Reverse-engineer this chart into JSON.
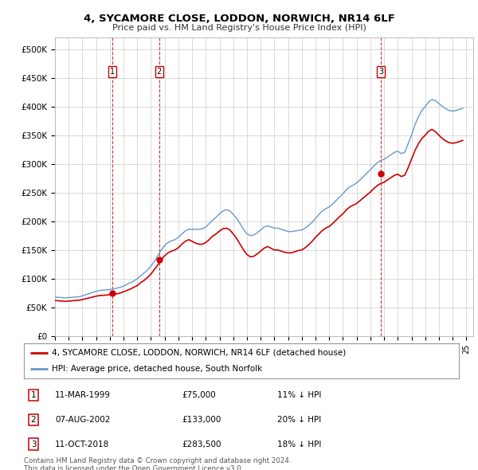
{
  "title": "4, SYCAMORE CLOSE, LODDON, NORWICH, NR14 6LF",
  "subtitle": "Price paid vs. HM Land Registry's House Price Index (HPI)",
  "ylabel_ticks": [
    "£0",
    "£50K",
    "£100K",
    "£150K",
    "£200K",
    "£250K",
    "£300K",
    "£350K",
    "£400K",
    "£450K",
    "£500K"
  ],
  "ytick_values": [
    0,
    50000,
    100000,
    150000,
    200000,
    250000,
    300000,
    350000,
    400000,
    450000,
    500000
  ],
  "ylim": [
    0,
    520000
  ],
  "xlim_start": 1995.0,
  "xlim_end": 2025.5,
  "background_color": "#ffffff",
  "grid_color": "#cccccc",
  "hpi_color": "#6699cc",
  "price_color": "#cc0000",
  "transactions": [
    {
      "label": "1",
      "date_num": 1999.19,
      "price": 75000,
      "pct": "11%",
      "date_str": "11-MAR-1999"
    },
    {
      "label": "2",
      "date_num": 2002.59,
      "price": 133000,
      "pct": "20%",
      "date_str": "07-AUG-2002"
    },
    {
      "label": "3",
      "date_num": 2018.78,
      "price": 283500,
      "pct": "18%",
      "date_str": "11-OCT-2018"
    }
  ],
  "legend_property": "4, SYCAMORE CLOSE, LODDON, NORWICH, NR14 6LF (detached house)",
  "legend_hpi": "HPI: Average price, detached house, South Norfolk",
  "footer1": "Contains HM Land Registry data © Crown copyright and database right 2024.",
  "footer2": "This data is licensed under the Open Government Licence v3.0.",
  "hpi_data": [
    [
      1995.0,
      68000
    ],
    [
      1995.25,
      67500
    ],
    [
      1995.5,
      67000
    ],
    [
      1995.75,
      66500
    ],
    [
      1996.0,
      67000
    ],
    [
      1996.25,
      67500
    ],
    [
      1996.5,
      68000
    ],
    [
      1996.75,
      68500
    ],
    [
      1997.0,
      70000
    ],
    [
      1997.25,
      72000
    ],
    [
      1997.5,
      74000
    ],
    [
      1997.75,
      76000
    ],
    [
      1998.0,
      78000
    ],
    [
      1998.25,
      79500
    ],
    [
      1998.5,
      80000
    ],
    [
      1998.75,
      80500
    ],
    [
      1999.0,
      81000
    ],
    [
      1999.25,
      82000
    ],
    [
      1999.5,
      83500
    ],
    [
      1999.75,
      85000
    ],
    [
      2000.0,
      87000
    ],
    [
      2000.25,
      90000
    ],
    [
      2000.5,
      93000
    ],
    [
      2000.75,
      96000
    ],
    [
      2001.0,
      100000
    ],
    [
      2001.25,
      105000
    ],
    [
      2001.5,
      110000
    ],
    [
      2001.75,
      115000
    ],
    [
      2002.0,
      122000
    ],
    [
      2002.25,
      130000
    ],
    [
      2002.5,
      140000
    ],
    [
      2002.75,
      150000
    ],
    [
      2003.0,
      158000
    ],
    [
      2003.25,
      163000
    ],
    [
      2003.5,
      166000
    ],
    [
      2003.75,
      168000
    ],
    [
      2004.0,
      172000
    ],
    [
      2004.25,
      178000
    ],
    [
      2004.5,
      183000
    ],
    [
      2004.75,
      186000
    ],
    [
      2005.0,
      186000
    ],
    [
      2005.25,
      186000
    ],
    [
      2005.5,
      186000
    ],
    [
      2005.75,
      187000
    ],
    [
      2006.0,
      190000
    ],
    [
      2006.25,
      196000
    ],
    [
      2006.5,
      202000
    ],
    [
      2006.75,
      207000
    ],
    [
      2007.0,
      213000
    ],
    [
      2007.25,
      218000
    ],
    [
      2007.5,
      220000
    ],
    [
      2007.75,
      218000
    ],
    [
      2008.0,
      212000
    ],
    [
      2008.25,
      205000
    ],
    [
      2008.5,
      196000
    ],
    [
      2008.75,
      186000
    ],
    [
      2009.0,
      178000
    ],
    [
      2009.25,
      175000
    ],
    [
      2009.5,
      176000
    ],
    [
      2009.75,
      180000
    ],
    [
      2010.0,
      185000
    ],
    [
      2010.25,
      190000
    ],
    [
      2010.5,
      192000
    ],
    [
      2010.75,
      190000
    ],
    [
      2011.0,
      188000
    ],
    [
      2011.25,
      188000
    ],
    [
      2011.5,
      186000
    ],
    [
      2011.75,
      184000
    ],
    [
      2012.0,
      182000
    ],
    [
      2012.25,
      182000
    ],
    [
      2012.5,
      183000
    ],
    [
      2012.75,
      184000
    ],
    [
      2013.0,
      185000
    ],
    [
      2013.25,
      188000
    ],
    [
      2013.5,
      193000
    ],
    [
      2013.75,
      198000
    ],
    [
      2014.0,
      205000
    ],
    [
      2014.25,
      212000
    ],
    [
      2014.5,
      218000
    ],
    [
      2014.75,
      222000
    ],
    [
      2015.0,
      225000
    ],
    [
      2015.25,
      230000
    ],
    [
      2015.5,
      236000
    ],
    [
      2015.75,
      242000
    ],
    [
      2016.0,
      248000
    ],
    [
      2016.25,
      255000
    ],
    [
      2016.5,
      260000
    ],
    [
      2016.75,
      263000
    ],
    [
      2017.0,
      267000
    ],
    [
      2017.25,
      272000
    ],
    [
      2017.5,
      278000
    ],
    [
      2017.75,
      284000
    ],
    [
      2018.0,
      290000
    ],
    [
      2018.25,
      296000
    ],
    [
      2018.5,
      302000
    ],
    [
      2018.75,
      306000
    ],
    [
      2019.0,
      308000
    ],
    [
      2019.25,
      312000
    ],
    [
      2019.5,
      316000
    ],
    [
      2019.75,
      320000
    ],
    [
      2020.0,
      322000
    ],
    [
      2020.25,
      318000
    ],
    [
      2020.5,
      320000
    ],
    [
      2020.75,
      335000
    ],
    [
      2021.0,
      350000
    ],
    [
      2021.25,
      368000
    ],
    [
      2021.5,
      382000
    ],
    [
      2021.75,
      393000
    ],
    [
      2022.0,
      400000
    ],
    [
      2022.25,
      408000
    ],
    [
      2022.5,
      412000
    ],
    [
      2022.75,
      410000
    ],
    [
      2023.0,
      405000
    ],
    [
      2023.25,
      400000
    ],
    [
      2023.5,
      396000
    ],
    [
      2023.75,
      393000
    ],
    [
      2024.0,
      392000
    ],
    [
      2024.25,
      393000
    ],
    [
      2024.5,
      395000
    ],
    [
      2024.75,
      397000
    ]
  ],
  "price_data": [
    [
      1995.0,
      62000
    ],
    [
      1995.25,
      61500
    ],
    [
      1995.5,
      61000
    ],
    [
      1995.75,
      60500
    ],
    [
      1996.0,
      61000
    ],
    [
      1996.25,
      61500
    ],
    [
      1996.5,
      62000
    ],
    [
      1996.75,
      62500
    ],
    [
      1997.0,
      63500
    ],
    [
      1997.25,
      65000
    ],
    [
      1997.5,
      66500
    ],
    [
      1997.75,
      68000
    ],
    [
      1998.0,
      69500
    ],
    [
      1998.25,
      70500
    ],
    [
      1998.5,
      71000
    ],
    [
      1998.75,
      71500
    ],
    [
      1999.0,
      72000
    ],
    [
      1999.25,
      72500
    ],
    [
      1999.5,
      73500
    ],
    [
      1999.75,
      75000
    ],
    [
      2000.0,
      77000
    ],
    [
      2000.25,
      79500
    ],
    [
      2000.5,
      82000
    ],
    [
      2000.75,
      85000
    ],
    [
      2001.0,
      88000
    ],
    [
      2001.25,
      93000
    ],
    [
      2001.5,
      97000
    ],
    [
      2001.75,
      102000
    ],
    [
      2002.0,
      108000
    ],
    [
      2002.25,
      116000
    ],
    [
      2002.5,
      124000
    ],
    [
      2002.75,
      133000
    ],
    [
      2003.0,
      140000
    ],
    [
      2003.25,
      145000
    ],
    [
      2003.5,
      148000
    ],
    [
      2003.75,
      150000
    ],
    [
      2004.0,
      154000
    ],
    [
      2004.25,
      160000
    ],
    [
      2004.5,
      165000
    ],
    [
      2004.75,
      168000
    ],
    [
      2005.0,
      165000
    ],
    [
      2005.25,
      162000
    ],
    [
      2005.5,
      160000
    ],
    [
      2005.75,
      160000
    ],
    [
      2006.0,
      163000
    ],
    [
      2006.25,
      168000
    ],
    [
      2006.5,
      174000
    ],
    [
      2006.75,
      178000
    ],
    [
      2007.0,
      183000
    ],
    [
      2007.25,
      187000
    ],
    [
      2007.5,
      188000
    ],
    [
      2007.75,
      185000
    ],
    [
      2008.0,
      178000
    ],
    [
      2008.25,
      170000
    ],
    [
      2008.5,
      160000
    ],
    [
      2008.75,
      150000
    ],
    [
      2009.0,
      142000
    ],
    [
      2009.25,
      138000
    ],
    [
      2009.5,
      139000
    ],
    [
      2009.75,
      143000
    ],
    [
      2010.0,
      148000
    ],
    [
      2010.25,
      153000
    ],
    [
      2010.5,
      156000
    ],
    [
      2010.75,
      153000
    ],
    [
      2011.0,
      150000
    ],
    [
      2011.25,
      150000
    ],
    [
      2011.5,
      148000
    ],
    [
      2011.75,
      146000
    ],
    [
      2012.0,
      145000
    ],
    [
      2012.25,
      145000
    ],
    [
      2012.5,
      147000
    ],
    [
      2012.75,
      149000
    ],
    [
      2013.0,
      150000
    ],
    [
      2013.25,
      154000
    ],
    [
      2013.5,
      159000
    ],
    [
      2013.75,
      165000
    ],
    [
      2014.0,
      172000
    ],
    [
      2014.25,
      178000
    ],
    [
      2014.5,
      184000
    ],
    [
      2014.75,
      188000
    ],
    [
      2015.0,
      191000
    ],
    [
      2015.25,
      196000
    ],
    [
      2015.5,
      202000
    ],
    [
      2015.75,
      208000
    ],
    [
      2016.0,
      213000
    ],
    [
      2016.25,
      220000
    ],
    [
      2016.5,
      225000
    ],
    [
      2016.75,
      228000
    ],
    [
      2017.0,
      231000
    ],
    [
      2017.25,
      236000
    ],
    [
      2017.5,
      241000
    ],
    [
      2017.75,
      246000
    ],
    [
      2018.0,
      251000
    ],
    [
      2018.25,
      257000
    ],
    [
      2018.5,
      262000
    ],
    [
      2018.75,
      266000
    ],
    [
      2019.0,
      268000
    ],
    [
      2019.25,
      272000
    ],
    [
      2019.5,
      276000
    ],
    [
      2019.75,
      280000
    ],
    [
      2020.0,
      282000
    ],
    [
      2020.25,
      278000
    ],
    [
      2020.5,
      280000
    ],
    [
      2020.75,
      293000
    ],
    [
      2021.0,
      308000
    ],
    [
      2021.25,
      323000
    ],
    [
      2021.5,
      335000
    ],
    [
      2021.75,
      344000
    ],
    [
      2022.0,
      350000
    ],
    [
      2022.25,
      357000
    ],
    [
      2022.5,
      360000
    ],
    [
      2022.75,
      356000
    ],
    [
      2023.0,
      350000
    ],
    [
      2023.25,
      344000
    ],
    [
      2023.5,
      340000
    ],
    [
      2023.75,
      337000
    ],
    [
      2024.0,
      336000
    ],
    [
      2024.25,
      337000
    ],
    [
      2024.5,
      339000
    ],
    [
      2024.75,
      341000
    ]
  ]
}
